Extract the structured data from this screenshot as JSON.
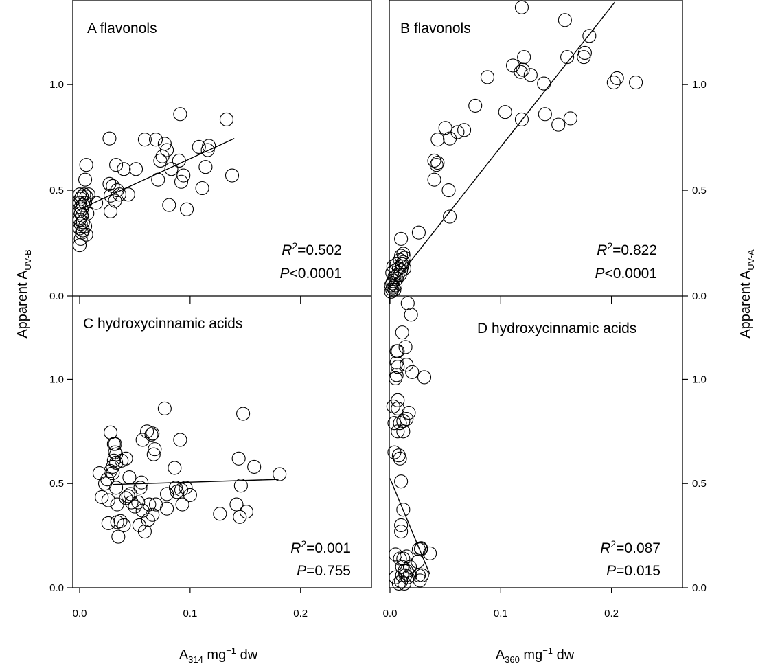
{
  "chart_data": [
    {
      "panel": "A",
      "type": "scatter",
      "label": "A flavonols",
      "xlim": [
        0,
        0.23
      ],
      "ylim": [
        0,
        1.4
      ],
      "xticks": [
        0.0,
        0.1,
        0.2
      ],
      "yticks": [
        0.0,
        0.5,
        1.0
      ],
      "r2_label": "=0.502",
      "p_label": "<0.0001",
      "fit": {
        "x": [
          0.0,
          0.14
        ],
        "y": [
          0.41,
          0.745
        ]
      },
      "points": [
        [
          0.0,
          0.24
        ],
        [
          0.001,
          0.27
        ],
        [
          0.002,
          0.3
        ],
        [
          0.0,
          0.32
        ],
        [
          0.001,
          0.34
        ],
        [
          0.003,
          0.35
        ],
        [
          0.0,
          0.36
        ],
        [
          0.002,
          0.38
        ],
        [
          0.001,
          0.39
        ],
        [
          0.0,
          0.4
        ],
        [
          0.002,
          0.41
        ],
        [
          0.001,
          0.42
        ],
        [
          0.003,
          0.43
        ],
        [
          0.0,
          0.44
        ],
        [
          0.001,
          0.46
        ],
        [
          0.002,
          0.47
        ],
        [
          0.0,
          0.48
        ],
        [
          0.004,
          0.48
        ],
        [
          0.003,
          0.31
        ],
        [
          0.005,
          0.33
        ],
        [
          0.006,
          0.29
        ],
        [
          0.007,
          0.39
        ],
        [
          0.005,
          0.44
        ],
        [
          0.006,
          0.47
        ],
        [
          0.005,
          0.55
        ],
        [
          0.006,
          0.62
        ],
        [
          0.008,
          0.48
        ],
        [
          0.015,
          0.44
        ],
        [
          0.027,
          0.745
        ],
        [
          0.027,
          0.53
        ],
        [
          0.028,
          0.475
        ],
        [
          0.028,
          0.4
        ],
        [
          0.03,
          0.52
        ],
        [
          0.032,
          0.45
        ],
        [
          0.033,
          0.62
        ],
        [
          0.034,
          0.5
        ],
        [
          0.036,
          0.48
        ],
        [
          0.04,
          0.6
        ],
        [
          0.044,
          0.48
        ],
        [
          0.051,
          0.6
        ],
        [
          0.059,
          0.74
        ],
        [
          0.069,
          0.74
        ],
        [
          0.071,
          0.55
        ],
        [
          0.073,
          0.64
        ],
        [
          0.075,
          0.66
        ],
        [
          0.077,
          0.72
        ],
        [
          0.079,
          0.69
        ],
        [
          0.081,
          0.43
        ],
        [
          0.083,
          0.6
        ],
        [
          0.09,
          0.64
        ],
        [
          0.091,
          0.86
        ],
        [
          0.092,
          0.54
        ],
        [
          0.094,
          0.57
        ],
        [
          0.097,
          0.41
        ],
        [
          0.108,
          0.705
        ],
        [
          0.111,
          0.51
        ],
        [
          0.114,
          0.61
        ],
        [
          0.116,
          0.69
        ],
        [
          0.117,
          0.71
        ],
        [
          0.133,
          0.835
        ],
        [
          0.138,
          0.57
        ]
      ]
    },
    {
      "panel": "B",
      "type": "scatter",
      "label": "B flavonols",
      "xlim": [
        0,
        0.23
      ],
      "ylim": [
        0,
        1.4
      ],
      "xticks": [
        0.0,
        0.1,
        0.2
      ],
      "yticks": [
        0.0,
        0.5,
        1.0
      ],
      "r2_label": "=0.822",
      "p_label": "<0.0001",
      "fit": {
        "x": [
          0.0,
          0.203
        ],
        "y": [
          0.04,
          1.39
        ]
      },
      "points": [
        [
          0.001,
          0.02
        ],
        [
          0.002,
          0.03
        ],
        [
          0.003,
          0.04
        ],
        [
          0.001,
          0.05
        ],
        [
          0.002,
          0.06
        ],
        [
          0.004,
          0.03
        ],
        [
          0.005,
          0.05
        ],
        [
          0.003,
          0.07
        ],
        [
          0.006,
          0.08
        ],
        [
          0.004,
          0.09
        ],
        [
          0.007,
          0.1
        ],
        [
          0.002,
          0.11
        ],
        [
          0.005,
          0.12
        ],
        [
          0.008,
          0.13
        ],
        [
          0.003,
          0.14
        ],
        [
          0.006,
          0.15
        ],
        [
          0.009,
          0.1
        ],
        [
          0.01,
          0.12
        ],
        [
          0.011,
          0.14
        ],
        [
          0.012,
          0.16
        ],
        [
          0.009,
          0.17
        ],
        [
          0.01,
          0.19
        ],
        [
          0.012,
          0.2
        ],
        [
          0.013,
          0.18
        ],
        [
          0.011,
          0.15
        ],
        [
          0.013,
          0.13
        ],
        [
          0.01,
          0.27
        ],
        [
          0.026,
          0.3
        ],
        [
          0.054,
          0.375
        ],
        [
          0.053,
          0.5
        ],
        [
          0.04,
          0.55
        ],
        [
          0.04,
          0.64
        ],
        [
          0.042,
          0.62
        ],
        [
          0.043,
          0.63
        ],
        [
          0.043,
          0.74
        ],
        [
          0.05,
          0.795
        ],
        [
          0.054,
          0.745
        ],
        [
          0.061,
          0.775
        ],
        [
          0.067,
          0.785
        ],
        [
          0.077,
          0.9
        ],
        [
          0.088,
          1.035
        ],
        [
          0.104,
          0.87
        ],
        [
          0.111,
          1.09
        ],
        [
          0.118,
          1.06
        ],
        [
          0.119,
          0.835
        ],
        [
          0.12,
          1.07
        ],
        [
          0.121,
          1.13
        ],
        [
          0.127,
          1.045
        ],
        [
          0.139,
          1.005
        ],
        [
          0.14,
          0.86
        ],
        [
          0.152,
          0.81
        ],
        [
          0.16,
          1.13
        ],
        [
          0.163,
          0.84
        ],
        [
          0.175,
          1.13
        ],
        [
          0.176,
          1.15
        ],
        [
          0.18,
          1.23
        ],
        [
          0.202,
          1.01
        ],
        [
          0.205,
          1.03
        ],
        [
          0.222,
          1.01
        ],
        [
          0.119,
          1.365
        ],
        [
          0.158,
          1.305
        ]
      ]
    },
    {
      "panel": "C",
      "type": "scatter",
      "label": "C hydroxycinnamic acids",
      "xlim": [
        0,
        0.23
      ],
      "ylim": [
        0,
        1.4
      ],
      "xticks": [
        0.0,
        0.1,
        0.2
      ],
      "yticks": [
        0.0,
        0.5,
        1.0
      ],
      "r2_label": "=0.001",
      "p_label": "=0.755",
      "fit": {
        "x": [
          0.03,
          0.18
        ],
        "y": [
          0.495,
          0.52
        ]
      },
      "points": [
        [
          0.018,
          0.55
        ],
        [
          0.02,
          0.435
        ],
        [
          0.023,
          0.5
        ],
        [
          0.025,
          0.52
        ],
        [
          0.026,
          0.42
        ],
        [
          0.026,
          0.31
        ],
        [
          0.028,
          0.56
        ],
        [
          0.028,
          0.745
        ],
        [
          0.03,
          0.55
        ],
        [
          0.03,
          0.58
        ],
        [
          0.031,
          0.61
        ],
        [
          0.031,
          0.69
        ],
        [
          0.032,
          0.69
        ],
        [
          0.032,
          0.65
        ],
        [
          0.033,
          0.64
        ],
        [
          0.033,
          0.6
        ],
        [
          0.033,
          0.48
        ],
        [
          0.034,
          0.4
        ],
        [
          0.034,
          0.315
        ],
        [
          0.035,
          0.245
        ],
        [
          0.037,
          0.32
        ],
        [
          0.038,
          0.61
        ],
        [
          0.04,
          0.3
        ],
        [
          0.042,
          0.62
        ],
        [
          0.042,
          0.43
        ],
        [
          0.044,
          0.44
        ],
        [
          0.045,
          0.53
        ],
        [
          0.046,
          0.45
        ],
        [
          0.047,
          0.41
        ],
        [
          0.05,
          0.39
        ],
        [
          0.053,
          0.41
        ],
        [
          0.054,
          0.3
        ],
        [
          0.055,
          0.48
        ],
        [
          0.056,
          0.505
        ],
        [
          0.057,
          0.37
        ],
        [
          0.057,
          0.71
        ],
        [
          0.059,
          0.27
        ],
        [
          0.061,
          0.75
        ],
        [
          0.062,
          0.325
        ],
        [
          0.063,
          0.4
        ],
        [
          0.065,
          0.735
        ],
        [
          0.066,
          0.74
        ],
        [
          0.066,
          0.35
        ],
        [
          0.067,
          0.64
        ],
        [
          0.068,
          0.665
        ],
        [
          0.069,
          0.4
        ],
        [
          0.077,
          0.86
        ],
        [
          0.079,
          0.38
        ],
        [
          0.079,
          0.45
        ],
        [
          0.086,
          0.575
        ],
        [
          0.087,
          0.48
        ],
        [
          0.088,
          0.46
        ],
        [
          0.091,
          0.71
        ],
        [
          0.092,
          0.47
        ],
        [
          0.093,
          0.4
        ],
        [
          0.096,
          0.48
        ],
        [
          0.1,
          0.445
        ],
        [
          0.127,
          0.355
        ],
        [
          0.142,
          0.4
        ],
        [
          0.144,
          0.62
        ],
        [
          0.145,
          0.34
        ],
        [
          0.146,
          0.49
        ],
        [
          0.148,
          0.835
        ],
        [
          0.151,
          0.365
        ],
        [
          0.158,
          0.58
        ],
        [
          0.181,
          0.545
        ]
      ]
    },
    {
      "panel": "D",
      "type": "scatter",
      "label": "D hydroxycinnamic acids",
      "xlim": [
        0,
        0.23
      ],
      "ylim": [
        0,
        1.4
      ],
      "xticks": [
        0.0,
        0.1,
        0.2
      ],
      "yticks": [
        0.0,
        0.5,
        1.0
      ],
      "r2_label": "=0.087",
      "p_label": "=0.015",
      "fit": {
        "x": [
          0.0,
          0.036
        ],
        "y": [
          0.525,
          0.065
        ]
      },
      "points": [
        [
          0.003,
          0.87
        ],
        [
          0.004,
          0.79
        ],
        [
          0.004,
          0.65
        ],
        [
          0.005,
          0.16
        ],
        [
          0.005,
          0.05
        ],
        [
          0.005,
          1.005
        ],
        [
          0.006,
          1.02
        ],
        [
          0.006,
          1.08
        ],
        [
          0.006,
          1.135
        ],
        [
          0.007,
          1.135
        ],
        [
          0.007,
          1.06
        ],
        [
          0.007,
          0.9
        ],
        [
          0.007,
          0.86
        ],
        [
          0.007,
          0.75
        ],
        [
          0.008,
          0.635
        ],
        [
          0.008,
          0.02
        ],
        [
          0.009,
          0.79
        ],
        [
          0.009,
          0.14
        ],
        [
          0.009,
          0.62
        ],
        [
          0.01,
          0.03
        ],
        [
          0.01,
          0.51
        ],
        [
          0.01,
          0.3
        ],
        [
          0.01,
          0.27
        ],
        [
          0.011,
          0.1
        ],
        [
          0.011,
          0.06
        ],
        [
          0.011,
          1.225
        ],
        [
          0.012,
          0.8
        ],
        [
          0.012,
          0.75
        ],
        [
          0.012,
          0.375
        ],
        [
          0.012,
          0.14
        ],
        [
          0.013,
          0.08
        ],
        [
          0.013,
          0.02
        ],
        [
          0.014,
          1.155
        ],
        [
          0.014,
          0.06
        ],
        [
          0.015,
          1.07
        ],
        [
          0.015,
          0.81
        ],
        [
          0.015,
          0.15
        ],
        [
          0.015,
          0.08
        ],
        [
          0.016,
          1.365
        ],
        [
          0.016,
          0.05
        ],
        [
          0.017,
          0.84
        ],
        [
          0.018,
          0.1
        ],
        [
          0.018,
          0.06
        ],
        [
          0.019,
          1.31
        ],
        [
          0.02,
          1.035
        ],
        [
          0.025,
          0.125
        ],
        [
          0.026,
          0.185
        ],
        [
          0.026,
          0.06
        ],
        [
          0.027,
          0.035
        ],
        [
          0.028,
          0.185
        ],
        [
          0.028,
          0.19
        ],
        [
          0.029,
          0.06
        ],
        [
          0.031,
          1.01
        ],
        [
          0.036,
          0.165
        ]
      ]
    }
  ],
  "axes": {
    "left_ylabel_main": "Apparent A",
    "left_ylabel_sub": "UV-B",
    "right_ylabel_main": "Apparent A",
    "right_ylabel_sub": "UV-A",
    "left_xlabel_main": "A",
    "left_xlabel_sub": "314",
    "left_xlabel_rest": " mg",
    "left_xlabel_sup": "−1",
    "left_xlabel_end": " dw",
    "right_xlabel_main": "A",
    "right_xlabel_sub": "360",
    "right_xlabel_rest": " mg",
    "right_xlabel_sup": "−1",
    "right_xlabel_end": " dw",
    "stat_r": "R",
    "stat_r_sup": "2",
    "stat_p": "P"
  }
}
